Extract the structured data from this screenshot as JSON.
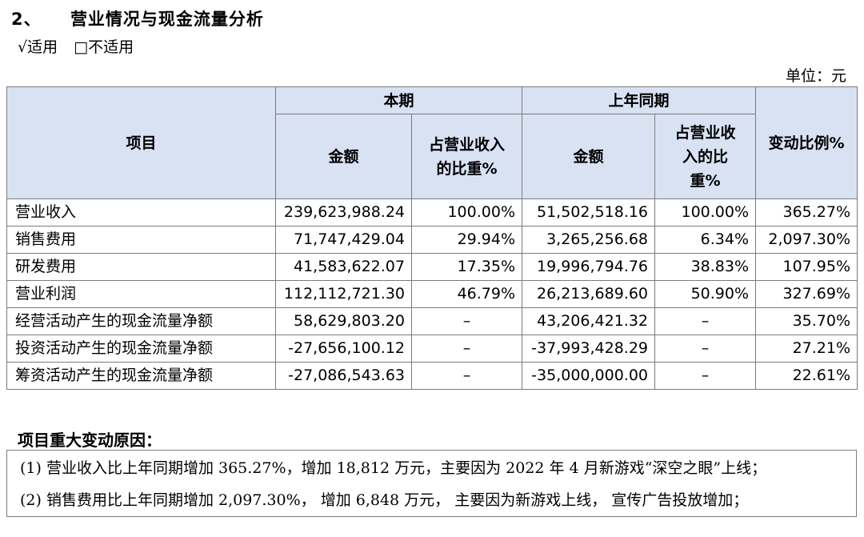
{
  "section": {
    "number": "2、",
    "title": "营业情况与现金流量分析"
  },
  "options": {
    "applicable": "√适用",
    "not_applicable": "□不适用"
  },
  "unit": "单位：元",
  "table": {
    "header": {
      "item": "项目",
      "current": "本期",
      "prior": "上年同期",
      "amount": "金额",
      "ratio_current": "占营业收入的比重%",
      "ratio_prior": "占营业收入的比重%",
      "change": "变动比例%"
    },
    "rows": [
      {
        "item": "营业收入",
        "amount": "239,623,988.24",
        "ratio": "100.00%",
        "prior_amount": "51,502,518.16",
        "prior_ratio": "100.00%",
        "change": "365.27%"
      },
      {
        "item": "销售费用",
        "amount": "71,747,429.04",
        "ratio": "29.94%",
        "prior_amount": "3,265,256.68",
        "prior_ratio": "6.34%",
        "change": "2,097.30%"
      },
      {
        "item": "研发费用",
        "amount": "41,583,622.07",
        "ratio": "17.35%",
        "prior_amount": "19,996,794.76",
        "prior_ratio": "38.83%",
        "change": "107.95%"
      },
      {
        "item": "营业利润",
        "amount": "112,112,721.30",
        "ratio": "46.79%",
        "prior_amount": "26,213,689.60",
        "prior_ratio": "50.90%",
        "change": "327.69%"
      },
      {
        "item": "经营活动产生的现金流量净额",
        "amount": "58,629,803.20",
        "ratio": "–",
        "prior_amount": "43,206,421.32",
        "prior_ratio": "–",
        "change": "35.70%"
      },
      {
        "item": "投资活动产生的现金流量净额",
        "amount": "-27,656,100.12",
        "ratio": "–",
        "prior_amount": "-37,993,428.29",
        "prior_ratio": "–",
        "change": "27.21%"
      },
      {
        "item": "筹资活动产生的现金流量净额",
        "amount": "-27,086,543.63",
        "ratio": "–",
        "prior_amount": "-35,000,000.00",
        "prior_ratio": "–",
        "change": "22.61%"
      }
    ]
  },
  "reasons": {
    "title": "项目重大变动原因：",
    "items": [
      "(1) 营业收入比上年同期增加 365.27%，增加 18,812 万元，主要因为 2022 年 4 月新游戏“深空之眼”上线；",
      "(2) 销售费用比上年同期增加 2,097.30%， 增加 6,848 万元， 主要因为新游戏上线， 宣传广告投放增加；"
    ]
  }
}
